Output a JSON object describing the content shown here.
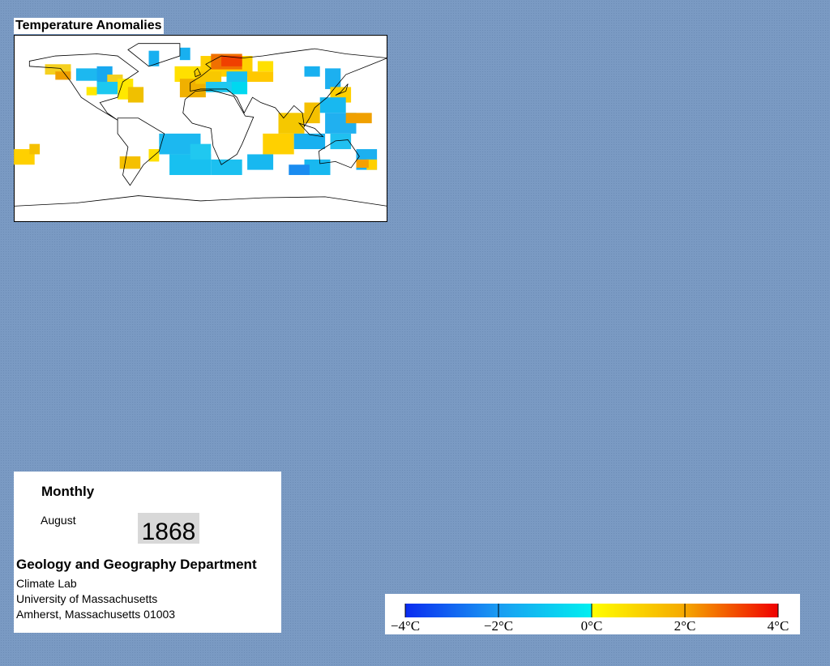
{
  "header": {
    "title": "Temperature Anomalies"
  },
  "info": {
    "frequency": "Monthly",
    "month": "August",
    "year": "1868",
    "department": "Geology and Geography Department",
    "lines": [
      "Climate Lab",
      "University of Massachusetts",
      "Amherst, Massachusetts 01003"
    ]
  },
  "colorbar": {
    "range": [
      -4,
      4
    ],
    "ticks": [
      {
        "value": -4,
        "label": "−4°C"
      },
      {
        "value": -2,
        "label": "−2°C"
      },
      {
        "value": 0,
        "label": "0°C"
      },
      {
        "value": 2,
        "label": "2°C"
      },
      {
        "value": 4,
        "label": "4°C"
      }
    ]
  }
}
